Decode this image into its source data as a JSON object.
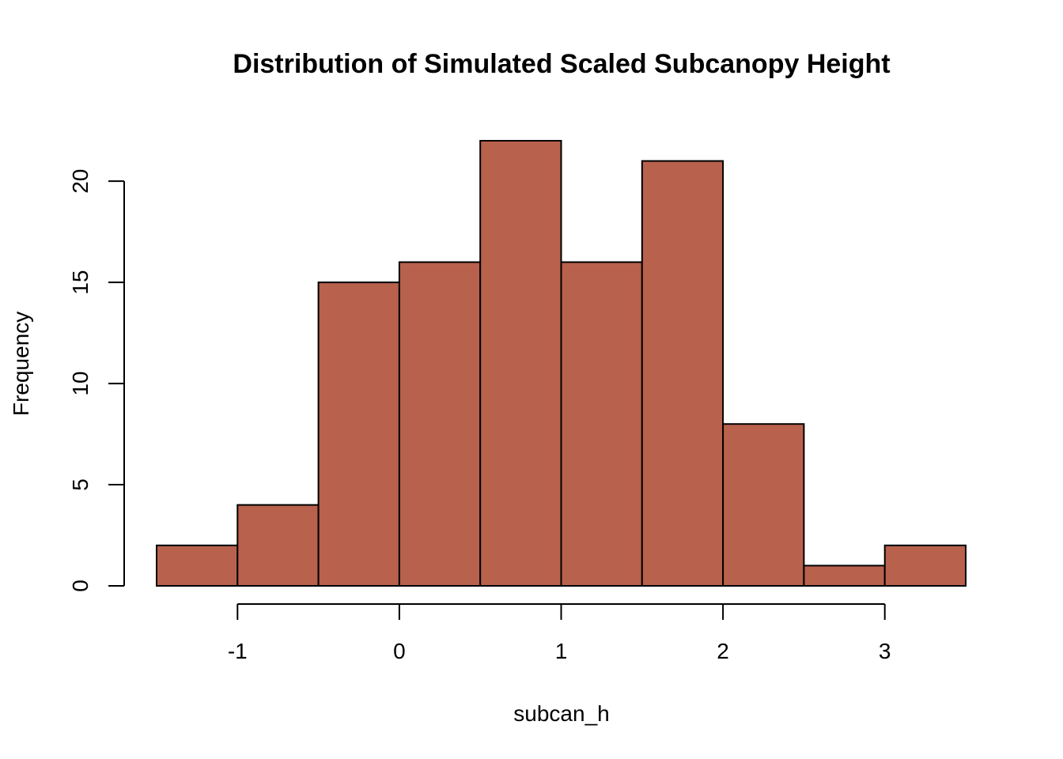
{
  "chart_data": {
    "type": "bar",
    "histogram": true,
    "title": "Distribution of Simulated Scaled Subcanopy Height",
    "xlabel": "subcan_h",
    "ylabel": "Frequency",
    "bin_edges": [
      -1.5,
      -1.0,
      -0.5,
      0.0,
      0.5,
      1.0,
      1.5,
      2.0,
      2.5,
      3.0,
      3.5
    ],
    "values": [
      2,
      4,
      15,
      16,
      22,
      16,
      21,
      8,
      1,
      2
    ],
    "xlim": [
      -1.5,
      3.5
    ],
    "ylim": [
      0,
      22
    ],
    "x_ticks": [
      -1,
      0,
      1,
      2,
      3
    ],
    "x_tick_labels": [
      "-1",
      "0",
      "1",
      "2",
      "3"
    ],
    "y_ticks": [
      0,
      5,
      10,
      15,
      20
    ],
    "y_tick_labels": [
      "0",
      "5",
      "10",
      "15",
      "20"
    ],
    "grid": false,
    "bar_color": "#b8614d",
    "edge_color": "#000000"
  }
}
